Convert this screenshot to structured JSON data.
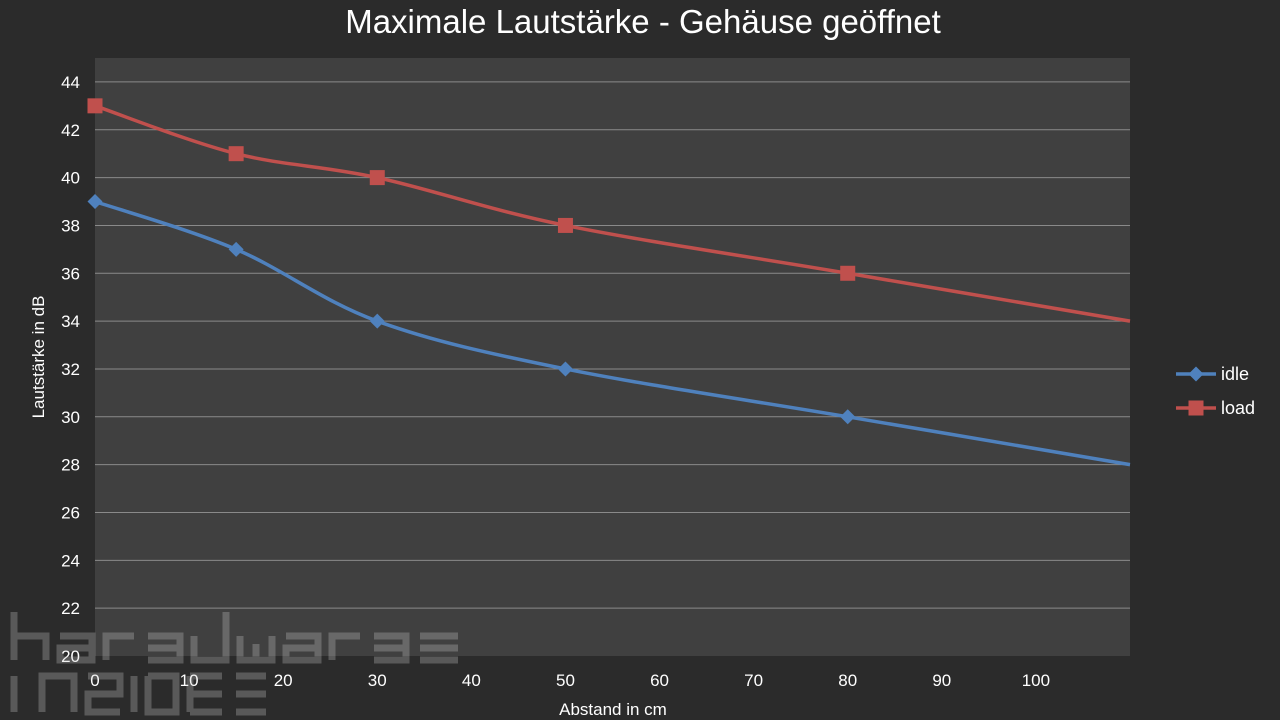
{
  "chart_data": {
    "type": "line",
    "title": "Maximale Lautstärke - Gehäuse geöffnet",
    "xlabel": "Abstand in cm",
    "ylabel": "Lautstärke in dB",
    "xlim": [
      0,
      110
    ],
    "ylim": [
      20,
      45
    ],
    "xticks": [
      0,
      10,
      20,
      30,
      40,
      50,
      60,
      70,
      80,
      90,
      100
    ],
    "yticks": [
      20,
      22,
      24,
      26,
      28,
      30,
      32,
      34,
      36,
      38,
      40,
      42,
      44
    ],
    "grid": true,
    "legend_position": "right",
    "series": [
      {
        "name": "idle",
        "color": "#4f81bd",
        "marker": "diamond",
        "points": [
          [
            0,
            39
          ],
          [
            15,
            37
          ],
          [
            30,
            34
          ],
          [
            50,
            32
          ],
          [
            80,
            30
          ],
          [
            110,
            28
          ]
        ]
      },
      {
        "name": "load",
        "color": "#c0504d",
        "marker": "square",
        "points": [
          [
            0,
            43
          ],
          [
            15,
            41
          ],
          [
            30,
            40
          ],
          [
            50,
            38
          ],
          [
            80,
            36
          ],
          [
            110,
            34
          ]
        ]
      }
    ]
  },
  "watermark": {
    "type": "logo",
    "text": "hardware inside"
  }
}
